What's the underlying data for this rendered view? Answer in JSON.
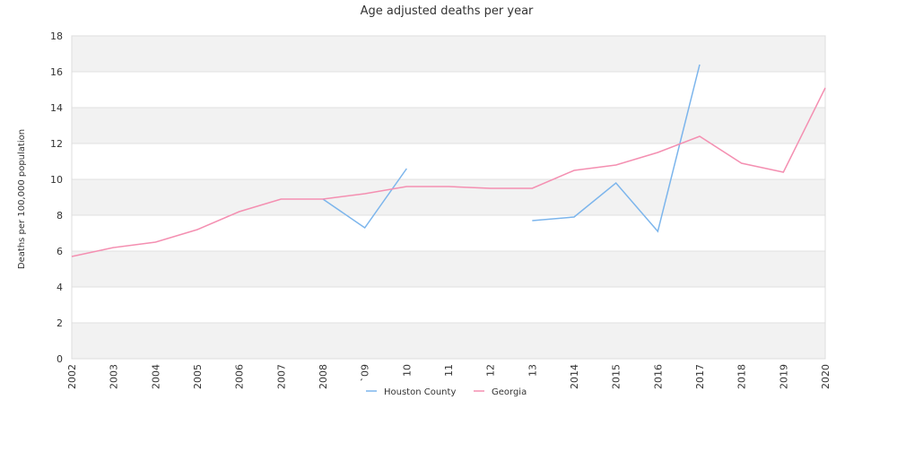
{
  "chart_data": {
    "type": "line",
    "title": "Age adjusted deaths per year",
    "ylabel": "Deaths per 100,000 population",
    "xlabel": "",
    "x": [
      "2002",
      "2003",
      "2004",
      "2005",
      "2006",
      "2007",
      "2008",
      "2009",
      "2010",
      "2011",
      "2012",
      "2013",
      "2014",
      "2015",
      "2016",
      "2017",
      "2018",
      "2019",
      "2020"
    ],
    "x_tick_labels": [
      "2002",
      "2003",
      "2004",
      "2005",
      "2006",
      "2007",
      "2008",
      "`09",
      "10",
      "11",
      "12",
      "13",
      "2014",
      "2015",
      "2016",
      "2017",
      "2018",
      "2019",
      "2020"
    ],
    "ylim": [
      0,
      18
    ],
    "yticks": [
      0,
      2,
      4,
      6,
      8,
      10,
      12,
      14,
      16,
      18
    ],
    "grid": "alternating horizontal bands",
    "legend_position": "bottom",
    "series": [
      {
        "name": "Houston County",
        "color": "#7cb5ec",
        "values": [
          null,
          null,
          null,
          null,
          null,
          null,
          8.9,
          7.3,
          10.6,
          null,
          null,
          7.7,
          7.9,
          9.8,
          7.1,
          16.4,
          null,
          null,
          null
        ]
      },
      {
        "name": "Georgia",
        "color": "#f48fb1",
        "values": [
          5.7,
          6.2,
          6.5,
          7.2,
          8.2,
          8.9,
          8.9,
          9.2,
          9.6,
          9.6,
          9.5,
          9.5,
          10.5,
          10.8,
          11.5,
          12.4,
          10.9,
          10.4,
          15.1
        ]
      }
    ]
  }
}
